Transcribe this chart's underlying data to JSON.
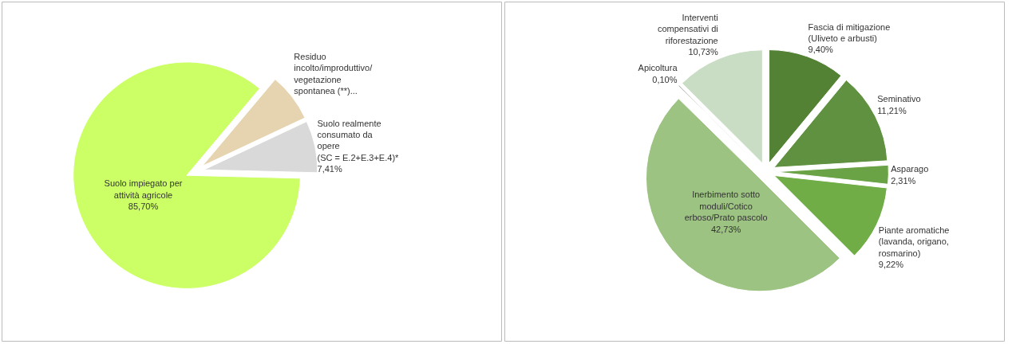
{
  "chart_data": [
    {
      "type": "pie",
      "categories": [
        "Suolo impiegato per\nattività agricole",
        "Residuo\nincolto/improduttivo/\nvegetazione\nspontanea (**)...",
        "Suolo realmente\nconsumato da\nopere\n(SC = E.2+E.3+E.4)*"
      ],
      "values": [
        85.7,
        6.89,
        7.41
      ],
      "value_labels": [
        "85,70%",
        null,
        "7,41%"
      ],
      "colors": [
        "#ccff66",
        "#e6d3b0",
        "#d9d9d9"
      ]
    },
    {
      "type": "pie",
      "categories": [
        "Fascia di mitigazione\n(Uliveto e arbusti)",
        "Seminativo",
        "Asparago",
        "Piante aromatiche\n(lavanda, origano,\nrosmarino)",
        "Inerbimento sotto\nmoduli/Cotico\nerboso/Prato pascolo",
        "Apicoltura",
        "Interventi\ncompensativi di\nriforestazione"
      ],
      "values": [
        9.4,
        11.21,
        2.31,
        9.22,
        42.73,
        0.1,
        10.73
      ],
      "value_labels": [
        "9,40%",
        "11,21%",
        "2,31%",
        "9,22%",
        "42,73%",
        "0,10%",
        "10,73%"
      ],
      "colors": [
        "#548235",
        "#5f9140",
        "#6aa345",
        "#70ad47",
        "#9dc383",
        "#4d5c47",
        "#c9dcc4"
      ]
    }
  ]
}
